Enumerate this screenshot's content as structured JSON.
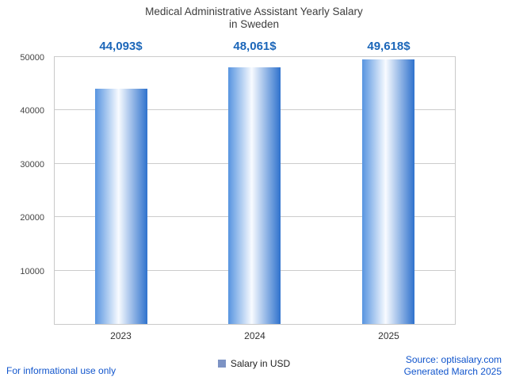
{
  "title": {
    "line1": "Medical Administrative Assistant Yearly Salary",
    "line2": "in Sweden"
  },
  "chart_data": {
    "type": "bar",
    "title": "Medical Administrative Assistant Yearly Salary in Sweden",
    "categories": [
      "2023",
      "2024",
      "2025"
    ],
    "series": [
      {
        "name": "Salary in USD",
        "values": [
          44093,
          48061,
          49618
        ]
      }
    ],
    "value_labels": [
      "44,093$",
      "48,061$",
      "49,618$"
    ],
    "xlabel": "",
    "ylabel": "",
    "ylim": [
      0,
      50000
    ],
    "yticks": [
      10000,
      20000,
      30000,
      40000,
      50000
    ],
    "grid": true,
    "legend_position": "bottom",
    "bar_gradient": [
      "#5794e0",
      "#f8fbff",
      "#2f72cd"
    ],
    "accent_color": "#1b66b9"
  },
  "legend": {
    "label": "Salary in USD",
    "swatch_color": "#7d93c4"
  },
  "footer": {
    "disclaimer": "For informational use only",
    "source": "Source: optisalary.com",
    "generated": "Generated March 2025",
    "link_color": "#1155cc"
  }
}
